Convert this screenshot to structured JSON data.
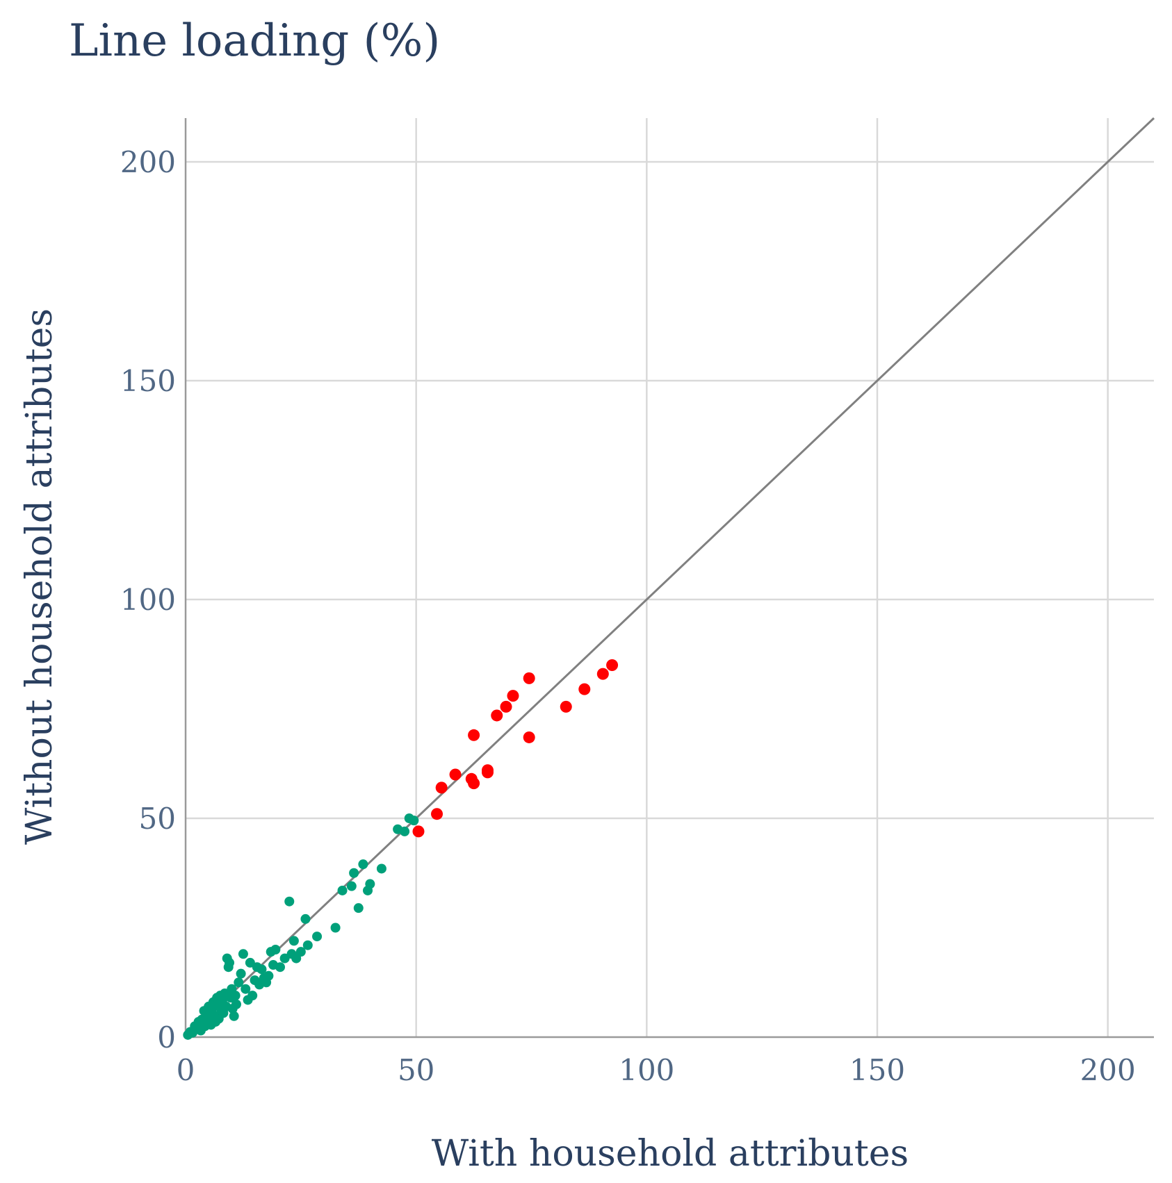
{
  "chart_data": {
    "type": "scatter",
    "title": "Line loading (%)",
    "xlabel": "With household attributes",
    "ylabel": "Without household attributes",
    "xlim": [
      0,
      210
    ],
    "ylim": [
      0,
      210
    ],
    "x_ticks": [
      0,
      50,
      100,
      150,
      200
    ],
    "y_ticks": [
      0,
      50,
      100,
      150,
      200
    ],
    "x_tick_labels": [
      "0",
      "50",
      "100",
      "150",
      "200"
    ],
    "y_tick_labels": [
      "0",
      "50",
      "100",
      "150",
      "200"
    ],
    "grid": true,
    "legend": "none",
    "reference_line": {
      "x": [
        0,
        210
      ],
      "y": [
        0,
        210
      ],
      "color": "#808080"
    },
    "series": [
      {
        "color": "#00a07a",
        "points": [
          [
            0.5,
            0.5
          ],
          [
            1.0,
            1.2
          ],
          [
            1.5,
            1.0
          ],
          [
            2.0,
            2.5
          ],
          [
            2.3,
            1.8
          ],
          [
            2.8,
            3.5
          ],
          [
            3.0,
            2.2
          ],
          [
            3.3,
            1.5
          ],
          [
            3.5,
            4.0
          ],
          [
            3.8,
            3.0
          ],
          [
            4.0,
            6.0
          ],
          [
            4.2,
            2.5
          ],
          [
            4.5,
            5.5
          ],
          [
            4.7,
            3.8
          ],
          [
            5.0,
            7.0
          ],
          [
            5.2,
            4.5
          ],
          [
            5.5,
            2.8
          ],
          [
            5.8,
            6.5
          ],
          [
            6.0,
            8.0
          ],
          [
            6.2,
            5.0
          ],
          [
            6.5,
            3.5
          ],
          [
            6.8,
            9.0
          ],
          [
            7.0,
            7.5
          ],
          [
            7.2,
            4.2
          ],
          [
            7.5,
            9.5
          ],
          [
            7.8,
            6.0
          ],
          [
            8.0,
            8.5
          ],
          [
            8.2,
            5.5
          ],
          [
            8.5,
            10.0
          ],
          [
            8.8,
            7.0
          ],
          [
            9.0,
            18.0
          ],
          [
            9.3,
            16.0
          ],
          [
            9.5,
            17.0
          ],
          [
            9.8,
            9.0
          ],
          [
            10.0,
            11.0
          ],
          [
            10.2,
            6.5
          ],
          [
            10.5,
            4.8
          ],
          [
            10.8,
            9.5
          ],
          [
            11.0,
            7.5
          ],
          [
            11.5,
            12.5
          ],
          [
            12.0,
            14.5
          ],
          [
            12.5,
            19.0
          ],
          [
            13.0,
            11.0
          ],
          [
            13.5,
            8.5
          ],
          [
            14.0,
            17.0
          ],
          [
            14.5,
            9.5
          ],
          [
            15.0,
            13.0
          ],
          [
            15.5,
            16.0
          ],
          [
            16.0,
            12.0
          ],
          [
            16.5,
            15.5
          ],
          [
            17.0,
            13.5
          ],
          [
            17.5,
            12.5
          ],
          [
            18.0,
            14.0
          ],
          [
            18.5,
            19.5
          ],
          [
            19.0,
            16.5
          ],
          [
            19.5,
            20.0
          ],
          [
            20.5,
            16.0
          ],
          [
            21.5,
            18.0
          ],
          [
            22.5,
            31.0
          ],
          [
            23.0,
            19.0
          ],
          [
            23.5,
            22.0
          ],
          [
            24.0,
            18.0
          ],
          [
            25.0,
            19.5
          ],
          [
            26.0,
            27.0
          ],
          [
            26.5,
            21.0
          ],
          [
            28.5,
            23.0
          ],
          [
            32.5,
            25.0
          ],
          [
            34.0,
            33.5
          ],
          [
            36.0,
            34.5
          ],
          [
            36.5,
            37.5
          ],
          [
            37.5,
            29.5
          ],
          [
            38.5,
            39.5
          ],
          [
            39.5,
            33.5
          ],
          [
            40.0,
            35.0
          ],
          [
            42.5,
            38.5
          ],
          [
            46.0,
            47.5
          ],
          [
            47.5,
            47.0
          ],
          [
            48.5,
            50.0
          ],
          [
            49.5,
            49.5
          ]
        ]
      },
      {
        "color": "#ff0000",
        "points": [
          [
            50.5,
            47.0
          ],
          [
            54.5,
            51.0
          ],
          [
            55.5,
            57.0
          ],
          [
            58.5,
            60.0
          ],
          [
            62.0,
            59.0
          ],
          [
            62.5,
            58.0
          ],
          [
            62.5,
            69.0
          ],
          [
            65.5,
            60.5
          ],
          [
            65.5,
            61.0
          ],
          [
            67.5,
            73.5
          ],
          [
            69.5,
            75.5
          ],
          [
            71.0,
            78.0
          ],
          [
            74.5,
            68.5
          ],
          [
            74.5,
            82.0
          ],
          [
            82.5,
            75.5
          ],
          [
            86.5,
            79.5
          ],
          [
            90.5,
            83.0
          ],
          [
            92.5,
            85.0
          ]
        ]
      }
    ]
  }
}
